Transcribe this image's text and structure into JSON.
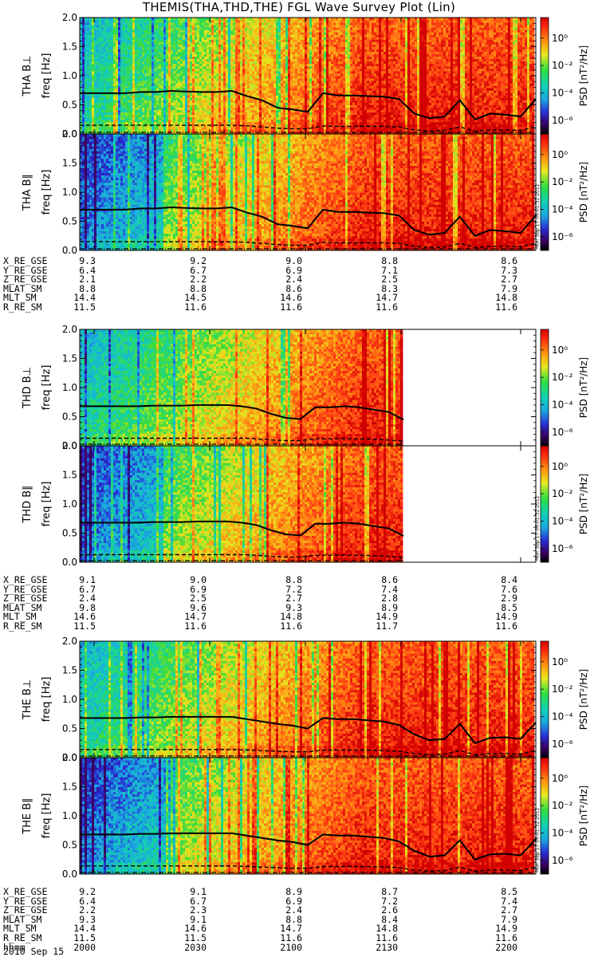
{
  "title": "THEMIS(THA,THD,THE) FGL Wave Survey Plot (Lin)",
  "colorbar": {
    "label": "PSD [nT²/Hz]",
    "ticks": [
      "10⁰",
      "10⁻²",
      "10⁻⁴",
      "10⁻⁶"
    ],
    "tick_exponents": [
      0,
      -2,
      -4,
      -6
    ]
  },
  "timestamp": "Mon Sep 17 06:01:32 2012",
  "date": "2010 Sep 15",
  "time_label": "hhmm",
  "time_ticks": [
    "2000",
    "2030",
    "2100",
    "2130",
    "2200"
  ],
  "chart_data": [
    {
      "type": "heatmap",
      "probe": "THA",
      "panels": [
        {
          "ylabel_name": "THA B⊥",
          "ylabel_unit": "freq [Hz]",
          "ylim": [
            0,
            2.0
          ],
          "yticks": [
            "0.0",
            "0.5",
            "1.0",
            "1.5",
            "2.0"
          ],
          "solid_line_hz": [
            0.7,
            0.7,
            0.7,
            0.7,
            0.72,
            0.72,
            0.74,
            0.73,
            0.72,
            0.72,
            0.74,
            0.65,
            0.58,
            0.45,
            0.42,
            0.38,
            0.7,
            0.66,
            0.66,
            0.65,
            0.64,
            0.6,
            0.35,
            0.27,
            0.3,
            0.58,
            0.25,
            0.35,
            0.33,
            0.3,
            0.6
          ],
          "dashed_line_hz": [
            0.15,
            0.15,
            0.15,
            0.15,
            0.15,
            0.15,
            0.15,
            0.15,
            0.15,
            0.15,
            0.15,
            0.14,
            0.12,
            0.1,
            0.09,
            0.09,
            0.14,
            0.13,
            0.13,
            0.13,
            0.13,
            0.12,
            0.07,
            0.05,
            0.06,
            0.12,
            0.05,
            0.07,
            0.07,
            0.06,
            0.12
          ],
          "data_end_fraction": 1.0
        },
        {
          "ylabel_name": "THA B∥",
          "ylabel_unit": "freq [Hz]",
          "ylim": [
            0,
            2.0
          ],
          "yticks": [
            "0.0",
            "0.5",
            "1.0",
            "1.5",
            "2.0"
          ],
          "solid_line_hz": [
            0.7,
            0.7,
            0.7,
            0.7,
            0.72,
            0.72,
            0.74,
            0.73,
            0.72,
            0.72,
            0.74,
            0.65,
            0.58,
            0.45,
            0.42,
            0.38,
            0.7,
            0.66,
            0.66,
            0.65,
            0.64,
            0.6,
            0.35,
            0.27,
            0.3,
            0.58,
            0.25,
            0.35,
            0.33,
            0.3,
            0.6
          ],
          "dashed_line_hz": [
            0.15,
            0.15,
            0.15,
            0.15,
            0.15,
            0.15,
            0.15,
            0.15,
            0.15,
            0.15,
            0.15,
            0.14,
            0.12,
            0.1,
            0.09,
            0.09,
            0.14,
            0.13,
            0.13,
            0.13,
            0.13,
            0.12,
            0.07,
            0.05,
            0.06,
            0.12,
            0.05,
            0.07,
            0.07,
            0.06,
            0.12
          ],
          "data_end_fraction": 1.0,
          "has_timestamp": true
        }
      ],
      "ephemeris": [
        {
          "label": "X_RE_GSE",
          "values": [
            "9.3",
            "9.2",
            "9.0",
            "8.8",
            "8.6"
          ]
        },
        {
          "label": "Y_RE_GSE",
          "values": [
            "6.4",
            "6.7",
            "6.9",
            "7.1",
            "7.3"
          ]
        },
        {
          "label": "Z_RE_GSE",
          "values": [
            "2.1",
            "2.2",
            "2.4",
            "2.5",
            "2.7"
          ]
        },
        {
          "label": "MLAT_SM",
          "values": [
            "8.8",
            "8.8",
            "8.6",
            "8.3",
            "7.9"
          ]
        },
        {
          "label": "MLT_SM",
          "values": [
            "14.4",
            "14.5",
            "14.6",
            "14.7",
            "14.8"
          ]
        },
        {
          "label": "R_RE_SM",
          "values": [
            "11.5",
            "11.6",
            "11.6",
            "11.6",
            "11.6"
          ]
        }
      ]
    },
    {
      "type": "heatmap",
      "probe": "THD",
      "panels": [
        {
          "ylabel_name": "THD B⊥",
          "ylabel_unit": "freq [Hz]",
          "ylim": [
            0,
            2.0
          ],
          "yticks": [
            "0.0",
            "0.5",
            "1.0",
            "1.5",
            "2.0"
          ],
          "solid_line_hz": [
            0.68,
            0.68,
            0.68,
            0.68,
            0.68,
            0.69,
            0.69,
            0.69,
            0.7,
            0.7,
            0.7,
            0.68,
            0.64,
            0.55,
            0.48,
            0.46,
            0.66,
            0.66,
            0.68,
            0.66,
            0.62,
            0.58,
            0.45
          ],
          "dashed_line_hz": [
            0.13,
            0.13,
            0.13,
            0.13,
            0.13,
            0.13,
            0.13,
            0.13,
            0.13,
            0.13,
            0.13,
            0.13,
            0.12,
            0.1,
            0.09,
            0.09,
            0.12,
            0.12,
            0.12,
            0.12,
            0.11,
            0.1,
            0.08
          ],
          "data_end_fraction": 0.71
        },
        {
          "ylabel_name": "THD B∥",
          "ylabel_unit": "freq [Hz]",
          "ylim": [
            0,
            2.0
          ],
          "yticks": [
            "0.0",
            "0.5",
            "1.0",
            "1.5",
            "2.0"
          ],
          "solid_line_hz": [
            0.68,
            0.68,
            0.68,
            0.68,
            0.68,
            0.69,
            0.69,
            0.69,
            0.7,
            0.7,
            0.7,
            0.68,
            0.64,
            0.55,
            0.48,
            0.46,
            0.66,
            0.66,
            0.68,
            0.66,
            0.62,
            0.58,
            0.45
          ],
          "dashed_line_hz": [
            0.13,
            0.13,
            0.13,
            0.13,
            0.13,
            0.13,
            0.13,
            0.13,
            0.13,
            0.13,
            0.13,
            0.13,
            0.12,
            0.1,
            0.09,
            0.09,
            0.12,
            0.12,
            0.12,
            0.12,
            0.11,
            0.1,
            0.08
          ],
          "data_end_fraction": 0.71,
          "has_timestamp": true
        }
      ],
      "ephemeris": [
        {
          "label": "X_RE_GSE",
          "values": [
            "9.1",
            "9.0",
            "8.8",
            "8.6",
            "8.4"
          ]
        },
        {
          "label": "Y_RE_GSE",
          "values": [
            "6.7",
            "6.9",
            "7.2",
            "7.4",
            "7.6"
          ]
        },
        {
          "label": "Z_RE_GSE",
          "values": [
            "2.4",
            "2.5",
            "2.7",
            "2.8",
            "2.9"
          ]
        },
        {
          "label": "MLAT_SM",
          "values": [
            "9.8",
            "9.6",
            "9.3",
            "8.9",
            "8.5"
          ]
        },
        {
          "label": "MLT_SM",
          "values": [
            "14.6",
            "14.7",
            "14.8",
            "14.9",
            "14.9"
          ]
        },
        {
          "label": "R_RE_SM",
          "values": [
            "11.5",
            "11.6",
            "11.6",
            "11.7",
            "11.6"
          ]
        }
      ]
    },
    {
      "type": "heatmap",
      "probe": "THE",
      "panels": [
        {
          "ylabel_name": "THE B⊥",
          "ylabel_unit": "freq [Hz]",
          "ylim": [
            0,
            2.0
          ],
          "yticks": [
            "0.0",
            "0.5",
            "1.0",
            "1.5",
            "2.0"
          ],
          "solid_line_hz": [
            0.68,
            0.68,
            0.68,
            0.68,
            0.69,
            0.69,
            0.7,
            0.7,
            0.7,
            0.7,
            0.7,
            0.66,
            0.62,
            0.58,
            0.55,
            0.5,
            0.68,
            0.66,
            0.66,
            0.64,
            0.62,
            0.56,
            0.4,
            0.3,
            0.32,
            0.58,
            0.25,
            0.34,
            0.35,
            0.32,
            0.6
          ],
          "dashed_line_hz": [
            0.14,
            0.14,
            0.14,
            0.14,
            0.14,
            0.14,
            0.14,
            0.14,
            0.14,
            0.14,
            0.14,
            0.13,
            0.12,
            0.11,
            0.1,
            0.1,
            0.13,
            0.13,
            0.13,
            0.13,
            0.12,
            0.11,
            0.07,
            0.05,
            0.06,
            0.12,
            0.05,
            0.07,
            0.07,
            0.06,
            0.12
          ],
          "data_end_fraction": 1.0
        },
        {
          "ylabel_name": "THE B∥",
          "ylabel_unit": "freq [Hz]",
          "ylim": [
            0,
            2.0
          ],
          "yticks": [
            "0.0",
            "0.5",
            "1.0",
            "1.5",
            "2.0"
          ],
          "solid_line_hz": [
            0.68,
            0.68,
            0.68,
            0.68,
            0.69,
            0.69,
            0.7,
            0.7,
            0.7,
            0.7,
            0.7,
            0.66,
            0.62,
            0.58,
            0.55,
            0.5,
            0.68,
            0.66,
            0.66,
            0.64,
            0.62,
            0.56,
            0.4,
            0.3,
            0.32,
            0.58,
            0.25,
            0.34,
            0.35,
            0.32,
            0.6
          ],
          "dashed_line_hz": [
            0.14,
            0.14,
            0.14,
            0.14,
            0.14,
            0.14,
            0.14,
            0.14,
            0.14,
            0.14,
            0.14,
            0.13,
            0.12,
            0.11,
            0.1,
            0.1,
            0.13,
            0.13,
            0.13,
            0.13,
            0.12,
            0.11,
            0.07,
            0.05,
            0.06,
            0.12,
            0.05,
            0.07,
            0.07,
            0.06,
            0.12
          ],
          "data_end_fraction": 1.0,
          "has_timestamp": true
        }
      ],
      "ephemeris": [
        {
          "label": "X_RE_GSE",
          "values": [
            "9.2",
            "9.1",
            "8.9",
            "8.7",
            "8.5"
          ]
        },
        {
          "label": "Y_RE_GSE",
          "values": [
            "6.4",
            "6.7",
            "6.9",
            "7.2",
            "7.4"
          ]
        },
        {
          "label": "Z_RE_GSE",
          "values": [
            "2.2",
            "2.3",
            "2.4",
            "2.6",
            "2.7"
          ]
        },
        {
          "label": "MLAT_SM",
          "values": [
            "9.3",
            "9.1",
            "8.8",
            "8.4",
            "7.9"
          ]
        },
        {
          "label": "MLT_SM",
          "values": [
            "14.4",
            "14.6",
            "14.7",
            "14.8",
            "14.9"
          ]
        },
        {
          "label": "R_RE_SM",
          "values": [
            "11.5",
            "11.5",
            "11.6",
            "11.6",
            "11.6"
          ]
        }
      ]
    }
  ]
}
